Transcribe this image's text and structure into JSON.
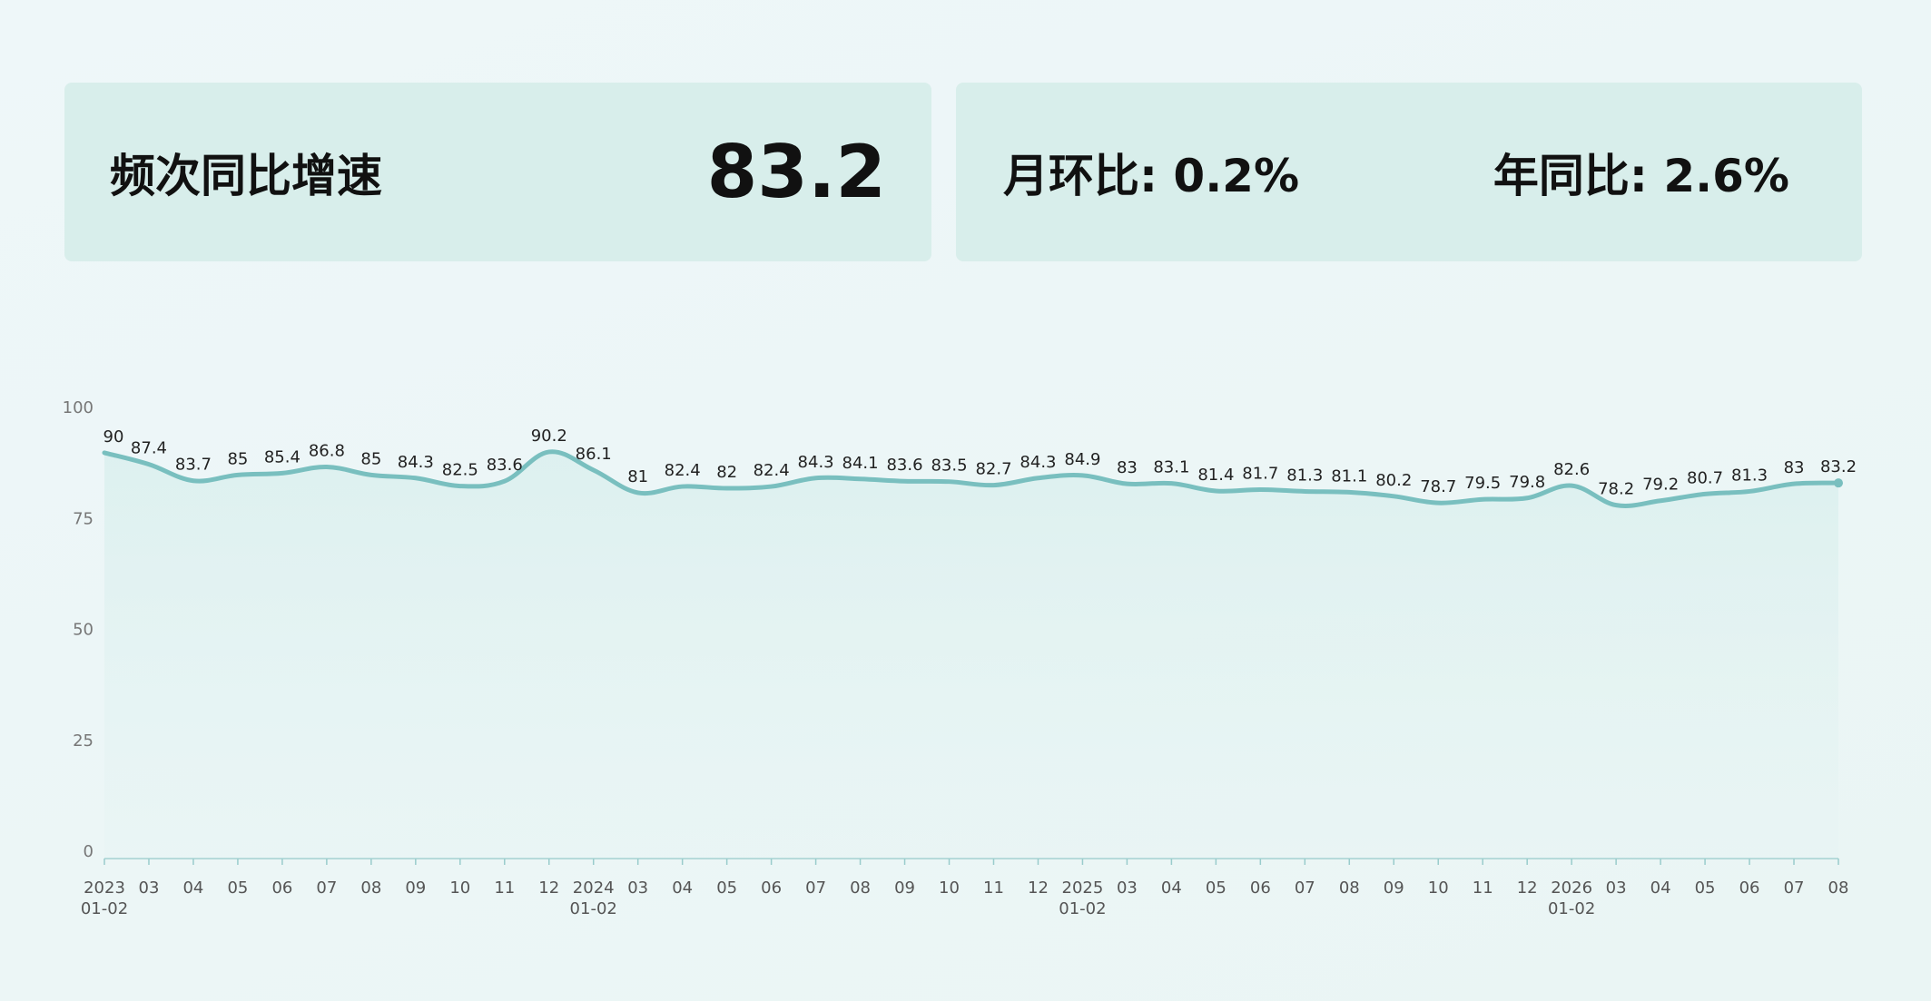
{
  "summary": {
    "title": "频次同比增速",
    "value": "83.2",
    "mom": "月环比: 0.2%",
    "yoy": "年同比: 2.6%"
  },
  "chart_data": {
    "type": "line",
    "categories": [
      [
        "2023",
        "01-02"
      ],
      "03",
      "04",
      "05",
      "06",
      "07",
      "08",
      "09",
      "10",
      "11",
      "12",
      [
        "2024",
        "01-02"
      ],
      "03",
      "04",
      "05",
      "06",
      "07",
      "08",
      "09",
      "10",
      "11",
      "12",
      [
        "2025",
        "01-02"
      ],
      "03",
      "04",
      "05",
      "06",
      "07",
      "08",
      "09",
      "10",
      "11",
      "12",
      [
        "2026",
        "01-02"
      ],
      "03",
      "04",
      "05",
      "06",
      "07",
      "08"
    ],
    "series": [
      {
        "color": "#79bfbf",
        "values": [
          90,
          87.4,
          83.7,
          85,
          85.4,
          86.8,
          85,
          84.3,
          82.5,
          83.6,
          90.2,
          86.1,
          81,
          82.4,
          82,
          82.4,
          84.3,
          84.1,
          83.6,
          83.5,
          82.7,
          84.3,
          84.9,
          83,
          83.1,
          81.4,
          81.7,
          81.3,
          81.1,
          80.2,
          78.7,
          79.5,
          79.8,
          82.6,
          78.2,
          79.2,
          80.7,
          81.3,
          83,
          83.2
        ]
      }
    ],
    "ylim": [
      0,
      100
    ],
    "yticks": [
      0,
      25,
      50,
      75,
      100
    ],
    "grid": false
  }
}
